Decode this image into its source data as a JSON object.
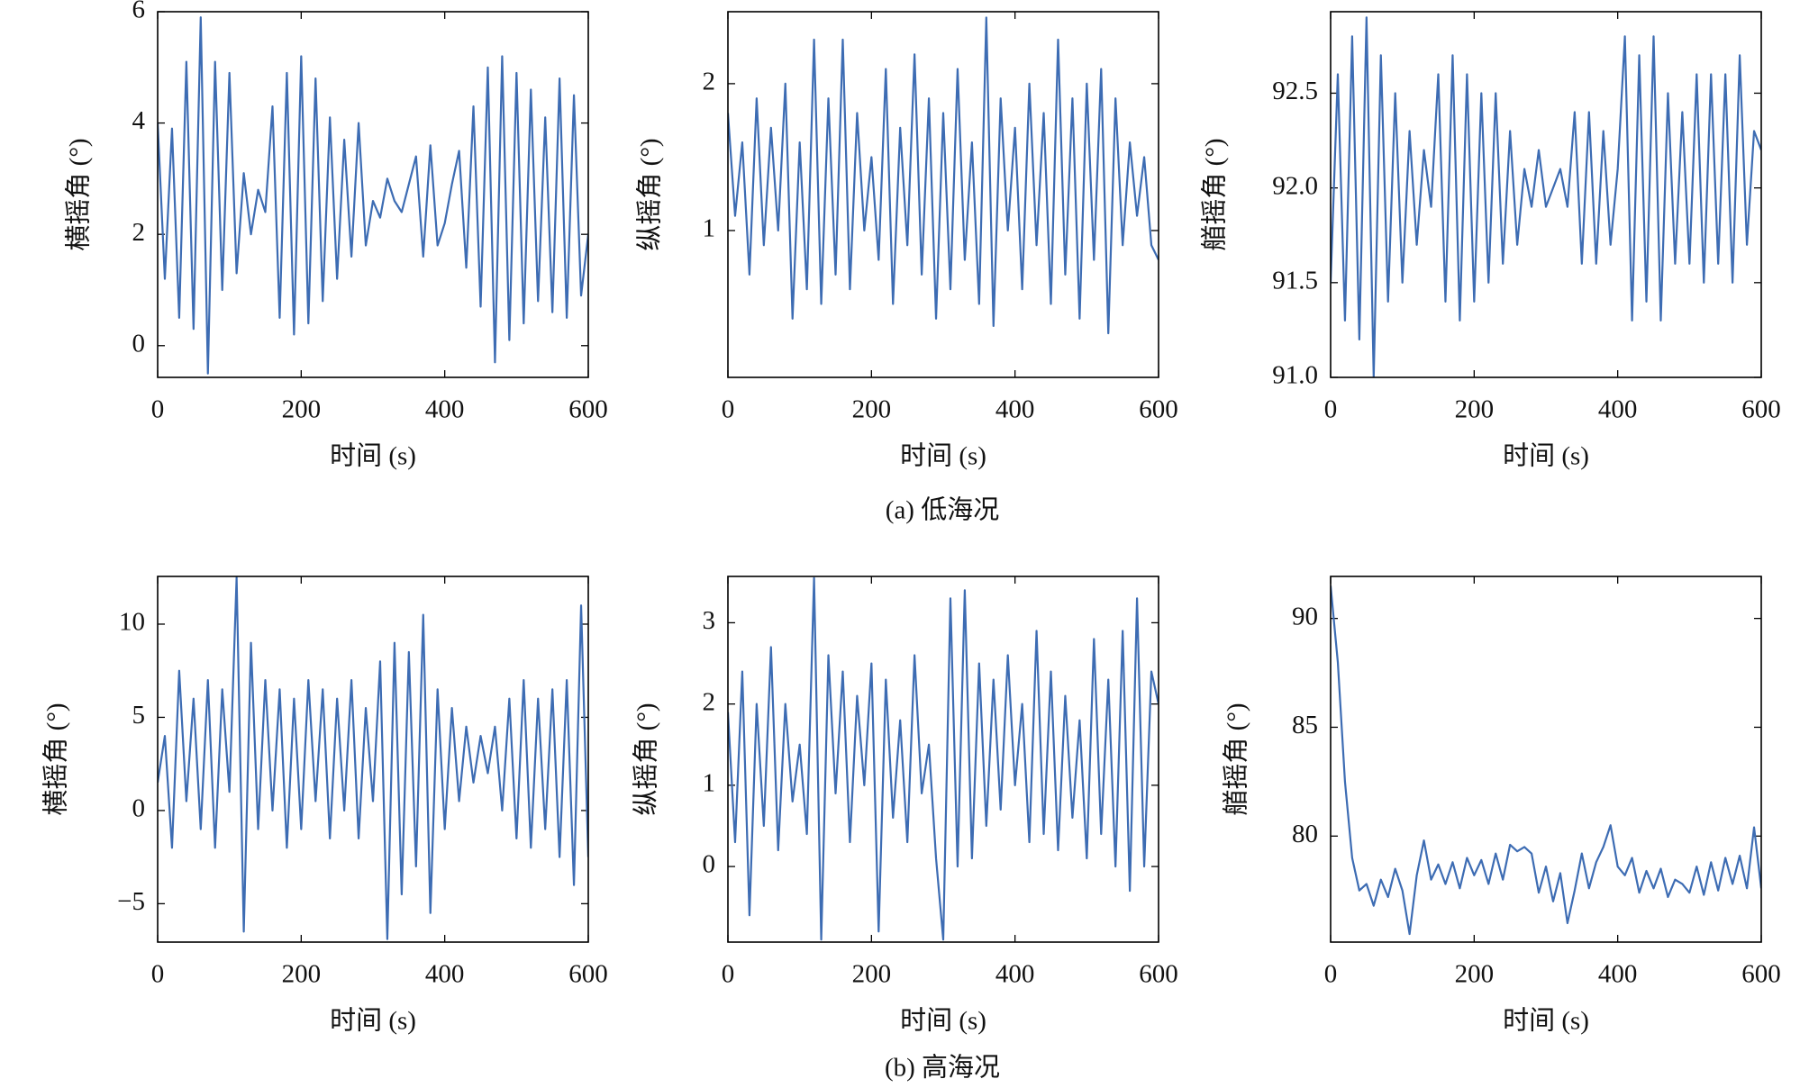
{
  "captions": [
    "(a) 低海况",
    "(b) 高海况"
  ],
  "chart_data": [
    {
      "type": "line",
      "ylabel": "横摇角 (°)",
      "xlabel": "时间 (s)",
      "color": "#3d6cb3",
      "xlim": [
        0,
        600
      ],
      "xticks": [
        0,
        200,
        400,
        600
      ],
      "ylim": [
        -0.57,
        6.0
      ],
      "yticks": [
        0,
        2,
        4,
        6
      ],
      "x": [
        0,
        10,
        20,
        30,
        40,
        50,
        60,
        70,
        80,
        90,
        100,
        110,
        120,
        130,
        140,
        150,
        160,
        170,
        180,
        190,
        200,
        210,
        220,
        230,
        240,
        250,
        260,
        270,
        280,
        290,
        300,
        310,
        320,
        330,
        340,
        350,
        360,
        370,
        380,
        390,
        400,
        410,
        420,
        430,
        440,
        450,
        460,
        470,
        480,
        490,
        500,
        510,
        520,
        530,
        540,
        550,
        560,
        570,
        580,
        590,
        600
      ],
      "values": [
        4.0,
        1.2,
        3.9,
        0.5,
        5.1,
        0.3,
        5.9,
        -0.5,
        5.1,
        1.0,
        4.9,
        1.3,
        3.1,
        2.0,
        2.8,
        2.4,
        4.3,
        0.5,
        4.9,
        0.2,
        5.2,
        0.4,
        4.8,
        0.8,
        4.1,
        1.2,
        3.7,
        1.6,
        4.0,
        1.8,
        2.6,
        2.3,
        3.0,
        2.6,
        2.4,
        2.9,
        3.4,
        1.6,
        3.6,
        1.8,
        2.2,
        2.9,
        3.5,
        1.4,
        4.3,
        0.7,
        5.0,
        -0.3,
        5.2,
        0.1,
        4.9,
        0.4,
        4.6,
        0.8,
        4.1,
        0.6,
        4.8,
        0.5,
        4.5,
        0.9,
        2.0
      ]
    },
    {
      "type": "line",
      "ylabel": "纵摇角 (°)",
      "xlabel": "时间 (s)",
      "color": "#3d6cb3",
      "xlim": [
        0,
        600
      ],
      "xticks": [
        0,
        200,
        400,
        600
      ],
      "ylim": [
        0,
        2.49
      ],
      "yticks": [
        1,
        2
      ],
      "x": [
        0,
        10,
        20,
        30,
        40,
        50,
        60,
        70,
        80,
        90,
        100,
        110,
        120,
        130,
        140,
        150,
        160,
        170,
        180,
        190,
        200,
        210,
        220,
        230,
        240,
        250,
        260,
        270,
        280,
        290,
        300,
        310,
        320,
        330,
        340,
        350,
        360,
        370,
        380,
        390,
        400,
        410,
        420,
        430,
        440,
        450,
        460,
        470,
        480,
        490,
        500,
        510,
        520,
        530,
        540,
        550,
        560,
        570,
        580,
        590,
        600
      ],
      "values": [
        1.8,
        1.1,
        1.6,
        0.7,
        1.9,
        0.9,
        1.7,
        1.0,
        2.0,
        0.4,
        1.6,
        0.6,
        2.3,
        0.5,
        1.9,
        0.7,
        2.3,
        0.6,
        1.8,
        1.0,
        1.5,
        0.8,
        2.1,
        0.5,
        1.7,
        0.9,
        2.2,
        0.7,
        1.9,
        0.4,
        1.8,
        0.6,
        2.1,
        0.8,
        1.6,
        0.5,
        2.45,
        0.35,
        1.9,
        1.0,
        1.7,
        0.6,
        2.0,
        0.9,
        1.8,
        0.5,
        2.3,
        0.7,
        1.9,
        0.4,
        2.0,
        0.8,
        2.1,
        0.3,
        1.9,
        0.9,
        1.6,
        1.1,
        1.5,
        0.9,
        0.8
      ]
    },
    {
      "type": "line",
      "ylabel": "艏摇角 (°)",
      "xlabel": "时间 (s)",
      "color": "#3d6cb3",
      "xlim": [
        0,
        600
      ],
      "xticks": [
        0,
        200,
        400,
        600
      ],
      "ylim": [
        91.0,
        92.93
      ],
      "yticks": [
        {
          "value": 91.0,
          "label": "91.0"
        },
        91.5,
        {
          "value": 92.0,
          "label": "92.0"
        },
        92.5
      ],
      "x": [
        0,
        10,
        20,
        30,
        40,
        50,
        60,
        70,
        80,
        90,
        100,
        110,
        120,
        130,
        140,
        150,
        160,
        170,
        180,
        190,
        200,
        210,
        220,
        230,
        240,
        250,
        260,
        270,
        280,
        290,
        300,
        310,
        320,
        330,
        340,
        350,
        360,
        370,
        380,
        390,
        400,
        410,
        420,
        430,
        440,
        450,
        460,
        470,
        480,
        490,
        500,
        510,
        520,
        530,
        540,
        550,
        560,
        570,
        580,
        590,
        600
      ],
      "values": [
        91.5,
        92.6,
        91.3,
        92.8,
        91.2,
        92.9,
        91.0,
        92.7,
        91.4,
        92.5,
        91.5,
        92.3,
        91.7,
        92.2,
        91.9,
        92.6,
        91.4,
        92.7,
        91.3,
        92.6,
        91.4,
        92.5,
        91.5,
        92.5,
        91.6,
        92.3,
        91.7,
        92.1,
        91.9,
        92.2,
        91.9,
        92.0,
        92.1,
        91.9,
        92.4,
        91.6,
        92.4,
        91.6,
        92.3,
        91.7,
        92.1,
        92.8,
        91.3,
        92.7,
        91.4,
        92.8,
        91.3,
        92.5,
        91.6,
        92.4,
        91.6,
        92.6,
        91.5,
        92.6,
        91.6,
        92.6,
        91.5,
        92.7,
        91.7,
        92.3,
        92.2
      ]
    },
    {
      "type": "line",
      "ylabel": "横摇角 (°)",
      "xlabel": "时间 (s)",
      "color": "#3d6cb3",
      "xlim": [
        0,
        600
      ],
      "xticks": [
        0,
        200,
        400,
        600
      ],
      "ylim": [
        -7.06,
        12.56
      ],
      "yticks": [
        {
          "value": -5,
          "label": "−5"
        },
        0,
        5,
        10
      ],
      "x": [
        0,
        10,
        20,
        30,
        40,
        50,
        60,
        70,
        80,
        90,
        100,
        110,
        120,
        130,
        140,
        150,
        160,
        170,
        180,
        190,
        200,
        210,
        220,
        230,
        240,
        250,
        260,
        270,
        280,
        290,
        300,
        310,
        320,
        330,
        340,
        350,
        360,
        370,
        380,
        390,
        400,
        410,
        420,
        430,
        440,
        450,
        460,
        470,
        480,
        490,
        500,
        510,
        520,
        530,
        540,
        550,
        560,
        570,
        580,
        590,
        600
      ],
      "values": [
        1.5,
        4.0,
        -2.0,
        7.5,
        0.5,
        6.0,
        -1.0,
        7.0,
        -2.0,
        6.5,
        1.0,
        12.5,
        -6.5,
        9.0,
        -1.0,
        7.0,
        0.0,
        6.5,
        -2.0,
        6.0,
        -1.0,
        7.0,
        0.5,
        6.5,
        -1.5,
        6.0,
        0.0,
        7.0,
        -1.5,
        5.5,
        0.5,
        8.0,
        -6.9,
        9.0,
        -4.5,
        8.5,
        -3.0,
        10.5,
        -5.5,
        6.5,
        -1.0,
        5.5,
        0.5,
        4.5,
        1.5,
        4.0,
        2.0,
        4.5,
        0.0,
        6.0,
        -1.5,
        7.0,
        -2.0,
        6.0,
        -1.0,
        6.5,
        -2.5,
        7.0,
        -4.0,
        11.0,
        -2.5
      ]
    },
    {
      "type": "line",
      "ylabel": "纵摇角 (°)",
      "xlabel": "时间 (s)",
      "color": "#3d6cb3",
      "xlim": [
        0,
        600
      ],
      "xticks": [
        0,
        200,
        400,
        600
      ],
      "ylim": [
        -0.93,
        3.57
      ],
      "yticks": [
        0,
        1,
        2,
        3
      ],
      "x": [
        0,
        10,
        20,
        30,
        40,
        50,
        60,
        70,
        80,
        90,
        100,
        110,
        120,
        130,
        140,
        150,
        160,
        170,
        180,
        190,
        200,
        210,
        220,
        230,
        240,
        250,
        260,
        270,
        280,
        290,
        300,
        310,
        320,
        330,
        340,
        350,
        360,
        370,
        380,
        390,
        400,
        410,
        420,
        430,
        440,
        450,
        460,
        470,
        480,
        490,
        500,
        510,
        520,
        530,
        540,
        550,
        560,
        570,
        580,
        590,
        600
      ],
      "values": [
        1.9,
        0.3,
        2.4,
        -0.6,
        2.0,
        0.5,
        2.7,
        0.2,
        2.0,
        0.8,
        1.5,
        0.4,
        3.55,
        -0.9,
        2.6,
        0.9,
        2.4,
        0.3,
        2.1,
        1.0,
        2.5,
        -0.8,
        2.3,
        0.6,
        1.8,
        0.3,
        2.6,
        0.9,
        1.5,
        0.1,
        -0.9,
        3.3,
        0.0,
        3.4,
        0.1,
        2.5,
        0.5,
        2.3,
        0.7,
        2.6,
        1.0,
        2.0,
        0.3,
        2.9,
        0.4,
        2.4,
        0.2,
        2.1,
        0.6,
        1.8,
        0.1,
        2.8,
        0.4,
        2.3,
        0.0,
        2.9,
        -0.3,
        3.3,
        0.0,
        2.4,
        2.0
      ]
    },
    {
      "type": "line",
      "ylabel": "艏摇角 (°)",
      "xlabel": "时间 (s)",
      "color": "#3d6cb3",
      "xlim": [
        0,
        600
      ],
      "xticks": [
        0,
        200,
        400,
        600
      ],
      "ylim": [
        75.13,
        91.93
      ],
      "yticks": [
        80,
        85,
        90
      ],
      "x": [
        0,
        10,
        20,
        30,
        40,
        50,
        60,
        70,
        80,
        90,
        100,
        110,
        120,
        130,
        140,
        150,
        160,
        170,
        180,
        190,
        200,
        210,
        220,
        230,
        240,
        250,
        260,
        270,
        280,
        290,
        300,
        310,
        320,
        330,
        340,
        350,
        360,
        370,
        380,
        390,
        400,
        410,
        420,
        430,
        440,
        450,
        460,
        470,
        480,
        490,
        500,
        510,
        520,
        530,
        540,
        550,
        560,
        570,
        580,
        590,
        600
      ],
      "values": [
        91.5,
        88.0,
        82.5,
        79.0,
        77.5,
        77.8,
        76.8,
        78.0,
        77.2,
        78.5,
        77.5,
        75.5,
        78.2,
        79.8,
        78.0,
        78.7,
        77.8,
        78.8,
        77.6,
        79.0,
        78.2,
        78.9,
        77.8,
        79.2,
        78.0,
        79.6,
        79.3,
        79.5,
        79.2,
        77.4,
        78.6,
        77.0,
        78.3,
        76.0,
        77.5,
        79.2,
        77.6,
        78.8,
        79.5,
        80.5,
        78.6,
        78.2,
        79.0,
        77.4,
        78.4,
        77.6,
        78.5,
        77.2,
        78.0,
        77.8,
        77.4,
        78.6,
        77.3,
        78.8,
        77.5,
        79.0,
        77.8,
        79.1,
        77.6,
        80.4,
        77.6
      ]
    }
  ]
}
